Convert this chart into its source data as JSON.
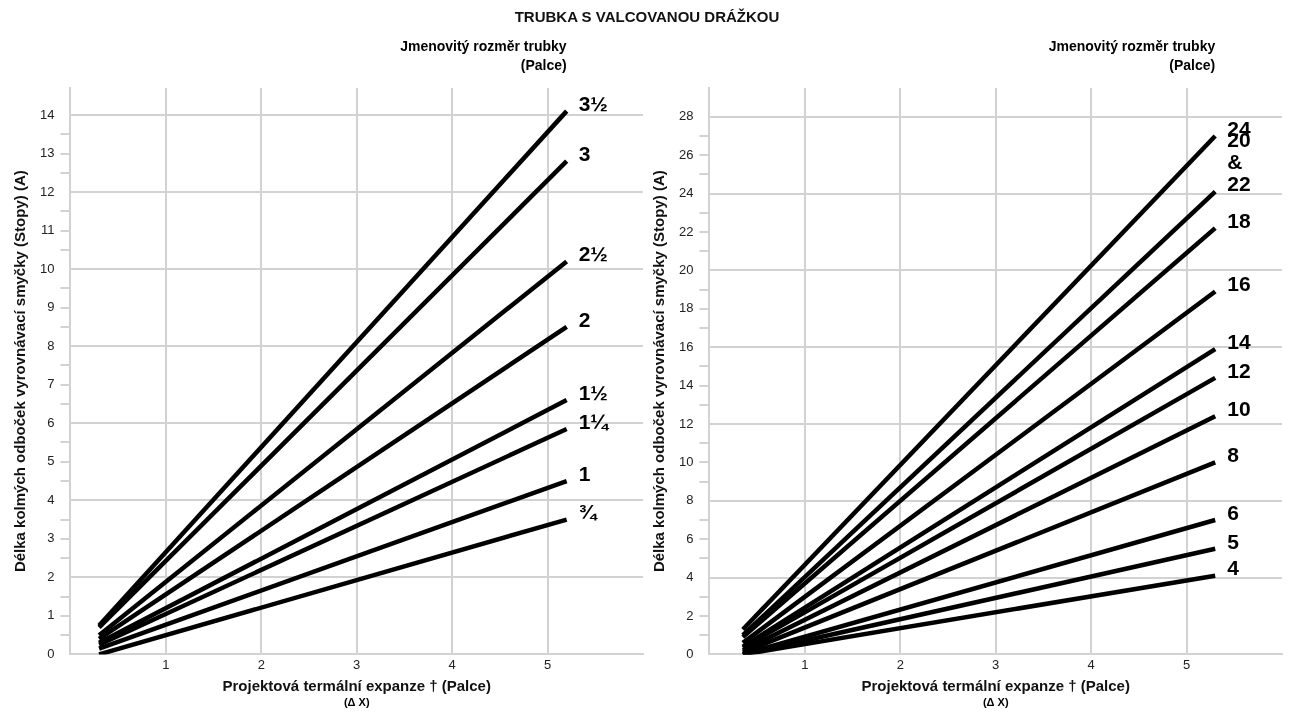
{
  "chart_data": [
    {
      "type": "line",
      "title": "TRUBKA S VALCOVANOU DRÁŽKOU",
      "legend_title": "Jmenovitý rozměr trubky (Palce)",
      "xlabel": "Projektová termální expanze † (Palce)",
      "ylabel": "Délka kolmých odboček vyrovnávací smyčky (Stopy) (A)",
      "annotations": [
        "(Δ X)"
      ],
      "grid": true,
      "marker": "none",
      "line_style": "solid",
      "xlim": [
        0,
        6
      ],
      "xticks": [
        1,
        2,
        3,
        4,
        5
      ],
      "ylim": [
        0,
        14.7
      ],
      "yticks": [
        0,
        {
          "value": 0.5,
          "label": null
        },
        1,
        {
          "value": 1.5,
          "label": null
        },
        2,
        {
          "value": 2.5,
          "label": null
        },
        3,
        {
          "value": 3.5,
          "label": null
        },
        4,
        {
          "value": 4.5,
          "label": null
        },
        5,
        {
          "value": 5.5,
          "label": null
        },
        6,
        {
          "value": 6.5,
          "label": null
        },
        7,
        {
          "value": 7.5,
          "label": null
        },
        8,
        {
          "value": 8.5,
          "label": null
        },
        9,
        {
          "value": 9.5,
          "label": null
        },
        10,
        {
          "value": 10.5,
          "label": null
        },
        11,
        {
          "value": 11.5,
          "label": null
        },
        12,
        {
          "value": 12.5,
          "label": null
        },
        13,
        {
          "value": 13.5,
          "label": null
        },
        14
      ],
      "series": [
        {
          "name": "3½",
          "color": "#000000",
          "x": [
            0.3,
            5.2
          ],
          "values": [
            0.75,
            14.1
          ]
        },
        {
          "name": "3",
          "color": "#000000",
          "x": [
            0.3,
            5.2
          ],
          "values": [
            0.7,
            12.8
          ]
        },
        {
          "name": "2½",
          "color": "#000000",
          "x": [
            0.3,
            5.2
          ],
          "values": [
            0.5,
            10.2
          ]
        },
        {
          "name": "2",
          "color": "#000000",
          "x": [
            0.3,
            5.2
          ],
          "values": [
            0.4,
            8.5
          ]
        },
        {
          "name": "1½",
          "color": "#000000",
          "x": [
            0.3,
            5.2
          ],
          "values": [
            0.3,
            6.6
          ]
        },
        {
          "name": "1¼",
          "color": "#000000",
          "x": [
            0.3,
            5.2
          ],
          "values": [
            0.25,
            5.85
          ]
        },
        {
          "name": "1",
          "color": "#000000",
          "x": [
            0.3,
            5.2
          ],
          "values": [
            0.15,
            4.5
          ]
        },
        {
          "name": "¾",
          "color": "#000000",
          "x": [
            0.3,
            5.2
          ],
          "values": [
            0,
            3.5
          ]
        }
      ]
    },
    {
      "type": "line",
      "legend_title": "Jmenovitý rozměr trubky (Palce)",
      "xlabel": "Projektová termální expanze † (Palce)",
      "ylabel": "Délka kolmých odboček vyrovnávací smyčky (Stopy) (A)",
      "annotations": [
        "(Δ X)"
      ],
      "grid": true,
      "marker": "none",
      "line_style": "solid",
      "xlim": [
        0,
        6
      ],
      "xticks": [
        1,
        2,
        3,
        4,
        5
      ],
      "ylim": [
        0,
        29.5
      ],
      "yticks": [
        0,
        {
          "value": 1,
          "label": null
        },
        2,
        {
          "value": 3,
          "label": null
        },
        4,
        {
          "value": 5,
          "label": null
        },
        6,
        {
          "value": 7,
          "label": null
        },
        8,
        {
          "value": 9,
          "label": null
        },
        10,
        {
          "value": 11,
          "label": null
        },
        12,
        {
          "value": 13,
          "label": null
        },
        14,
        {
          "value": 15,
          "label": null
        },
        16,
        {
          "value": 17,
          "label": null
        },
        18,
        {
          "value": 19,
          "label": null
        },
        20,
        {
          "value": 21,
          "label": null
        },
        22,
        {
          "value": 23,
          "label": null
        },
        24,
        {
          "value": 25,
          "label": null
        },
        26,
        {
          "value": 27,
          "label": null
        },
        28
      ],
      "series": [
        {
          "name": "24",
          "color": "#000000",
          "x": [
            0.35,
            5.3
          ],
          "values": [
            1.3,
            27
          ]
        },
        {
          "name": "20 & 22",
          "color": "#000000",
          "x": [
            0.35,
            5.3
          ],
          "values": [
            1,
            24.1
          ]
        },
        {
          "name": "18",
          "color": "#000000",
          "x": [
            0.35,
            5.3
          ],
          "values": [
            0.9,
            22.2
          ]
        },
        {
          "name": "16",
          "color": "#000000",
          "x": [
            0.35,
            5.3
          ],
          "values": [
            0.6,
            18.9
          ]
        },
        {
          "name": "14",
          "color": "#000000",
          "x": [
            0.35,
            5.3
          ],
          "values": [
            0.4,
            15.9
          ]
        },
        {
          "name": "12",
          "color": "#000000",
          "x": [
            0.35,
            5.3
          ],
          "values": [
            0.35,
            14.4
          ]
        },
        {
          "name": "10",
          "color": "#000000",
          "x": [
            0.35,
            5.3
          ],
          "values": [
            0.2,
            12.4
          ]
        },
        {
          "name": "8",
          "color": "#000000",
          "x": [
            0.35,
            5.3
          ],
          "values": [
            0.1,
            10
          ]
        },
        {
          "name": "6",
          "color": "#000000",
          "x": [
            0.35,
            5.3
          ],
          "values": [
            0,
            7
          ]
        },
        {
          "name": "5",
          "color": "#000000",
          "x": [
            0.35,
            5.3
          ],
          "values": [
            0,
            5.5
          ]
        },
        {
          "name": "4",
          "color": "#000000",
          "x": [
            0.35,
            5.3
          ],
          "values": [
            0,
            4.1
          ]
        }
      ]
    }
  ]
}
